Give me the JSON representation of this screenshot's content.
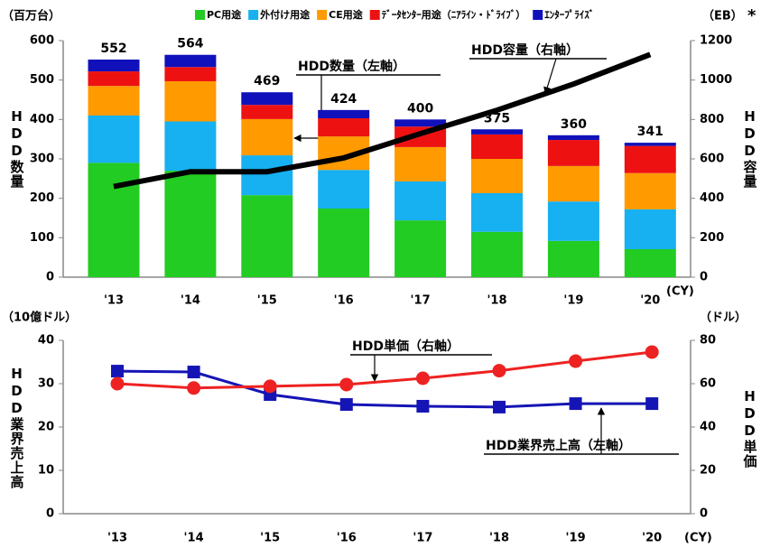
{
  "chart_data": [
    {
      "type": "bar",
      "stacked": true,
      "unit_label": "（百万台）",
      "y2_unit_label": "（EB）",
      "note": "*",
      "x_unit_label": "(CY)",
      "ylabel": "HDD数量",
      "y2label": "HDD容量",
      "categories": [
        "'13",
        "'14",
        "'15",
        "'16",
        "'17",
        "'18",
        "'19",
        "'20"
      ],
      "series": [
        {
          "name": "PC用途",
          "color": "#22cc22",
          "values": [
            290,
            270,
            208,
            174,
            144,
            115,
            92,
            71
          ]
        },
        {
          "name": "外付け用途",
          "color": "#17b0f0",
          "values": [
            120,
            125,
            101,
            98,
            99,
            98,
            100,
            101
          ]
        },
        {
          "name": "CE用途",
          "color": "#ff9a00",
          "values": [
            75,
            102,
            92,
            85,
            87,
            87,
            90,
            92
          ]
        },
        {
          "name": "ﾃﾞｰﾀｾﾝﾀｰ用途（ﾆｱﾗｲﾝ・ﾄﾞﾗｲﾌﾞ）",
          "color": "#ee1111",
          "values": [
            37,
            36,
            36,
            46,
            52,
            62,
            66,
            69
          ]
        },
        {
          "name": "ｴﾝﾀｰﾌﾟﾗｲｽﾞ",
          "color": "#1111bb",
          "values": [
            30,
            31,
            32,
            21,
            18,
            13,
            12,
            8
          ]
        },
        {
          "type": "line",
          "axis": "y2",
          "color": "#000000",
          "values": [
            460,
            535,
            535,
            605,
            728,
            847,
            980,
            1130
          ]
        }
      ],
      "totals": [
        552,
        564,
        469,
        424,
        400,
        375,
        360,
        341
      ],
      "ylim": [
        0,
        600
      ],
      "yticks": [
        0,
        100,
        200,
        300,
        400,
        500,
        600
      ],
      "y2lim": [
        0,
        1200
      ],
      "y2ticks": [
        0,
        200,
        400,
        600,
        800,
        1000,
        1200
      ],
      "annotations": [
        "HDD数量（左軸）",
        "HDD容量（右軸）"
      ]
    },
    {
      "type": "line",
      "unit_label": "（10億ドル）",
      "y2_unit_label": "（ドル）",
      "x_unit_label": "(CY)",
      "ylabel": "HDD業界売上高",
      "y2label": "HDD単価",
      "categories": [
        "'13",
        "'14",
        "'15",
        "'16",
        "'17",
        "'18",
        "'19",
        "'20"
      ],
      "series": [
        {
          "color": "#1515b5",
          "marker": "square",
          "values": [
            32.9,
            32.7,
            27.5,
            25.2,
            24.8,
            24.6,
            25.4,
            25.4
          ]
        },
        {
          "axis": "y2",
          "color": "#ee2222",
          "marker": "circle",
          "values": [
            60,
            58,
            58.8,
            59.6,
            62.5,
            66,
            70.4,
            74.6
          ]
        }
      ],
      "ylim": [
        0,
        40
      ],
      "yticks": [
        0,
        10,
        20,
        30,
        40
      ],
      "y2lim": [
        0,
        80
      ],
      "y2ticks": [
        0,
        20,
        40,
        60,
        80
      ],
      "annotations": [
        "HDD単価（右軸）",
        "HDD業界売上高（左軸）"
      ]
    }
  ]
}
